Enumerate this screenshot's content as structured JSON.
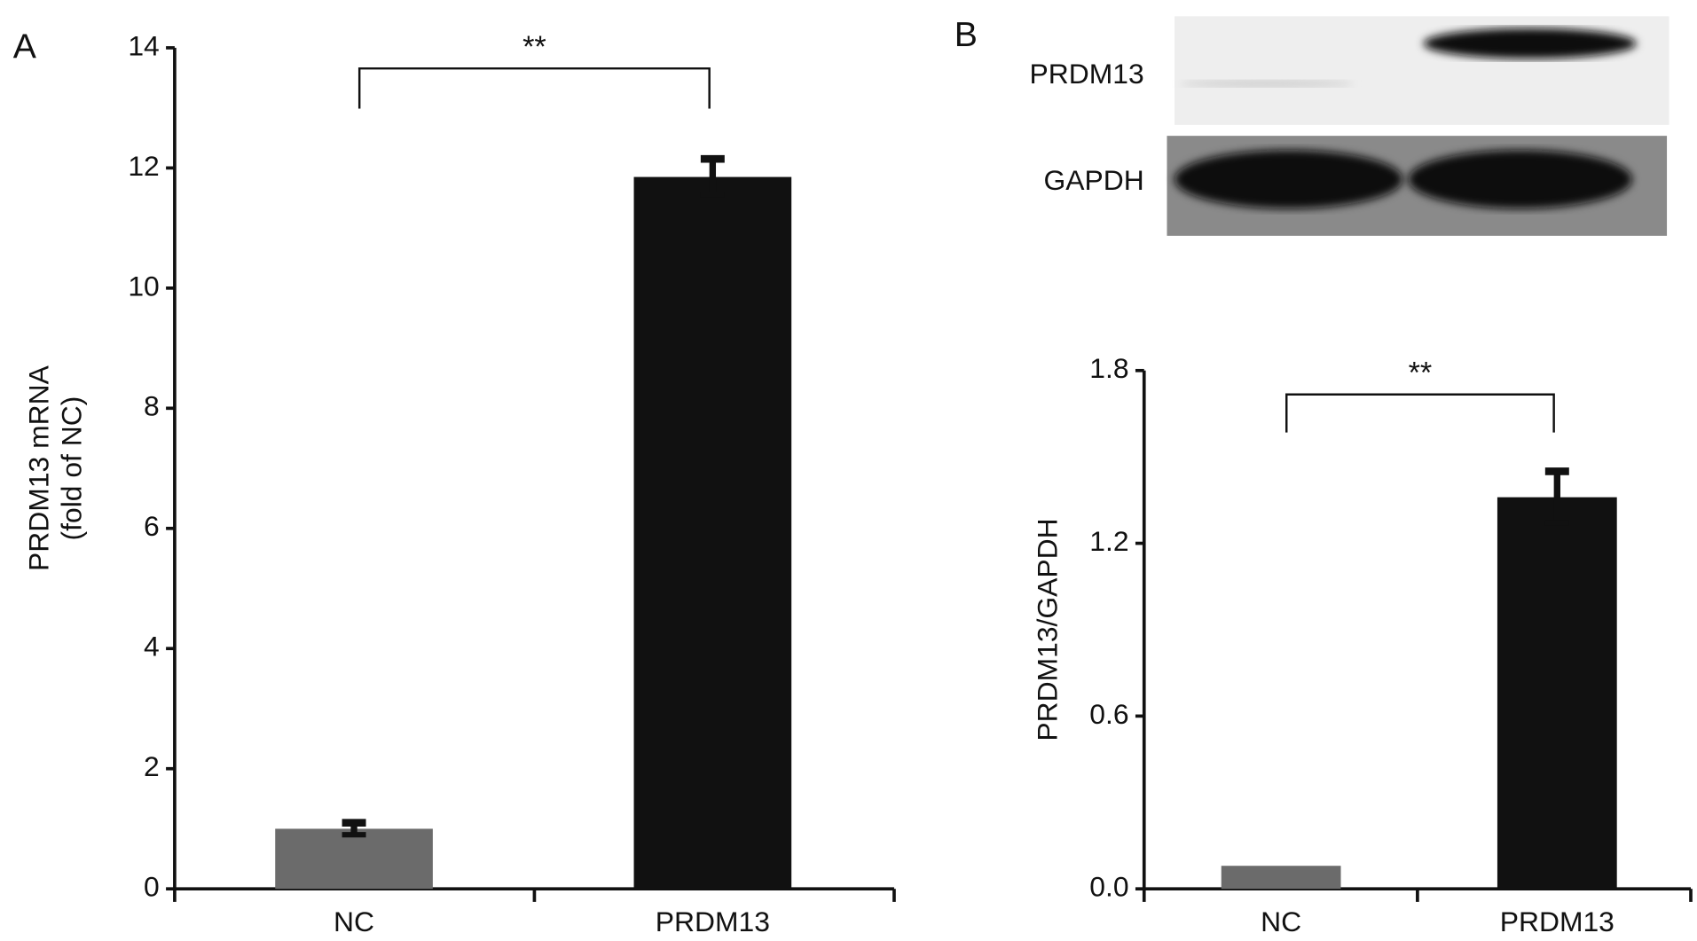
{
  "blot": {
    "labels": [
      "PRDM13",
      "GAPDH"
    ]
  },
  "chart_data": [
    {
      "type": "bar",
      "panel": "A",
      "ylabel": [
        "PRDM13 mRNA",
        "(fold of NC)"
      ],
      "categories": [
        "NC",
        "PRDM13"
      ],
      "values": [
        1.0,
        11.85
      ],
      "errors": [
        0.1,
        0.3
      ],
      "colors": [
        "#6b6b6b",
        "#111111"
      ],
      "ylim": [
        0,
        14
      ],
      "yticks": [
        0,
        2,
        4,
        6,
        8,
        10,
        12,
        14
      ],
      "annotation": "**"
    },
    {
      "type": "bar",
      "panel": "B",
      "ylabel": [
        "PRDM13/GAPDH"
      ],
      "categories": [
        "NC",
        "PRDM13"
      ],
      "values": [
        0.08,
        1.36
      ],
      "errors": [
        0,
        0.09
      ],
      "colors": [
        "#6b6b6b",
        "#111111"
      ],
      "ylim": [
        0,
        1.8
      ],
      "yticks": [
        {
          "value": 0,
          "label": "0.0"
        },
        0.6,
        1.2,
        1.8
      ],
      "annotation": "**"
    }
  ]
}
